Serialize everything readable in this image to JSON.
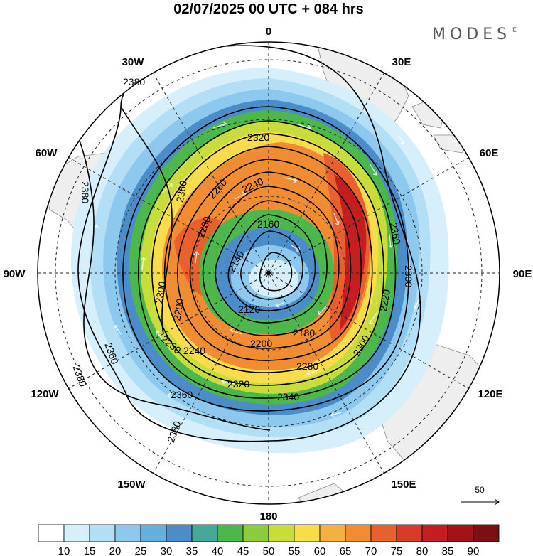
{
  "header": {
    "title": "02/07/2025  00 UTC  + 084 hrs",
    "brand": "MODES",
    "brand_mark": "©"
  },
  "longitude_labels": [
    "0",
    "30E",
    "60E",
    "90E",
    "120E",
    "150E",
    "180",
    "150W",
    "120W",
    "90W",
    "60W",
    "30W"
  ],
  "contour_labels": [
    "2380",
    "2380",
    "2380",
    "2380",
    "2380",
    "2360",
    "2360",
    "2360",
    "2360",
    "2340",
    "2320",
    "2320",
    "2300",
    "2300",
    "2300",
    "2280",
    "2280",
    "2280",
    "2260",
    "2240",
    "2240",
    "2220",
    "2200",
    "2200",
    "2180",
    "2160",
    "2140",
    "2120"
  ],
  "reference_vector": {
    "label": "50"
  },
  "colorbar": {
    "labels": [
      "10",
      "15",
      "20",
      "25",
      "30",
      "35",
      "40",
      "45",
      "50",
      "55",
      "60",
      "65",
      "70",
      "75",
      "80",
      "85",
      "90"
    ],
    "colors": [
      "#ffffff",
      "#d6effb",
      "#b3dff6",
      "#8dc9ee",
      "#66aee0",
      "#4a8dc8",
      "#44a89a",
      "#4cb84c",
      "#8ccc3c",
      "#c8dc3c",
      "#f7dc4c",
      "#f4b040",
      "#f08c32",
      "#e8602c",
      "#d83c28",
      "#c41e20",
      "#a21218",
      "#7c0e14"
    ]
  },
  "chart_data": {
    "type": "polar-stereographic-map",
    "hemisphere": "south",
    "variable_fill": "wind speed",
    "variable_contour": "geopotential height",
    "contour_levels": [
      2120,
      2140,
      2160,
      2180,
      2200,
      2220,
      2240,
      2260,
      2280,
      2300,
      2320,
      2340,
      2360,
      2380
    ],
    "fill_levels": [
      10,
      15,
      20,
      25,
      30,
      35,
      40,
      45,
      50,
      55,
      60,
      65,
      70,
      75,
      80,
      85,
      90
    ]
  }
}
